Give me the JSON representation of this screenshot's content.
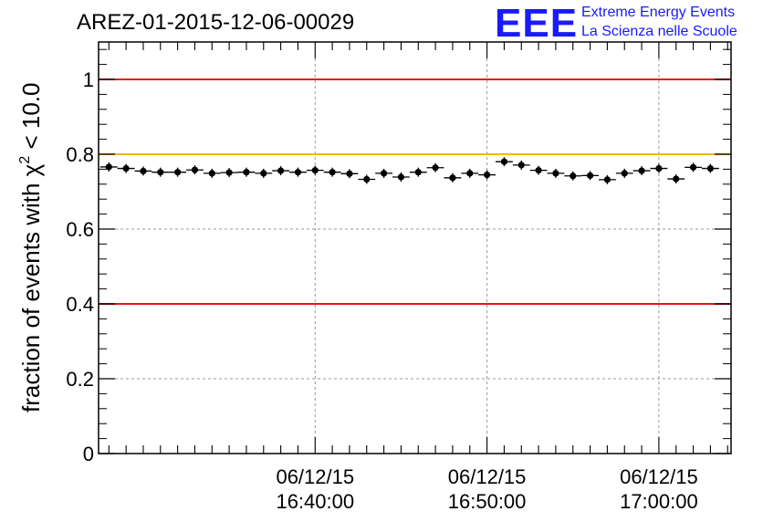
{
  "title": "AREZ-01-2015-12-06-00029",
  "logo": {
    "mark": "EEE",
    "line1": "Extreme Energy Events",
    "line2": "La Scienza nelle Scuole"
  },
  "chart_data": {
    "type": "scatter",
    "title": "AREZ-01-2015-12-06-00029",
    "ylabel": "fraction of events with χ² < 10.0",
    "ylabel_parts": {
      "prefix": "fraction of events with ",
      "chi": "χ",
      "sup": "2",
      "suffix": " < 10.0"
    },
    "xlabel": "",
    "ylim": [
      0,
      1.1
    ],
    "yticks": [
      0,
      0.2,
      0.4,
      0.6,
      0.8,
      1
    ],
    "ytick_labels": [
      "0",
      "0.2",
      "0.4",
      "0.6",
      "0.8",
      "1"
    ],
    "xlim_minutes": [
      -22.6,
      14.2
    ],
    "xticks": [
      {
        "t": -10,
        "date": "06/12/15",
        "time": "16:40:00"
      },
      {
        "t": 0,
        "date": "06/12/15",
        "time": "16:50:00"
      },
      {
        "t": 10,
        "date": "06/12/15",
        "time": "17:00:00"
      }
    ],
    "grid": true,
    "reference_lines": [
      {
        "y": 1.0,
        "color": "#e8131b"
      },
      {
        "y": 0.8,
        "color": "#f5b800"
      },
      {
        "y": 0.4,
        "color": "#e8131b"
      }
    ],
    "series": [
      {
        "color": "#000000",
        "x_minutes": [
          -22,
          -21,
          -20,
          -19,
          -18,
          -17,
          -16,
          -15,
          -14,
          -13,
          -12,
          -11,
          -10,
          -9,
          -8,
          -7,
          -6,
          -5,
          -4,
          -3,
          -2,
          -1,
          0,
          1,
          2,
          3,
          4,
          5,
          6,
          7,
          8,
          9,
          10,
          11,
          12,
          13
        ],
        "values": [
          0.766,
          0.762,
          0.755,
          0.752,
          0.752,
          0.758,
          0.749,
          0.751,
          0.752,
          0.749,
          0.756,
          0.752,
          0.757,
          0.752,
          0.748,
          0.733,
          0.749,
          0.739,
          0.752,
          0.764,
          0.737,
          0.749,
          0.745,
          0.78,
          0.771,
          0.757,
          0.749,
          0.742,
          0.743,
          0.732,
          0.749,
          0.756,
          0.762,
          0.734,
          0.765,
          0.762
        ]
      }
    ]
  }
}
